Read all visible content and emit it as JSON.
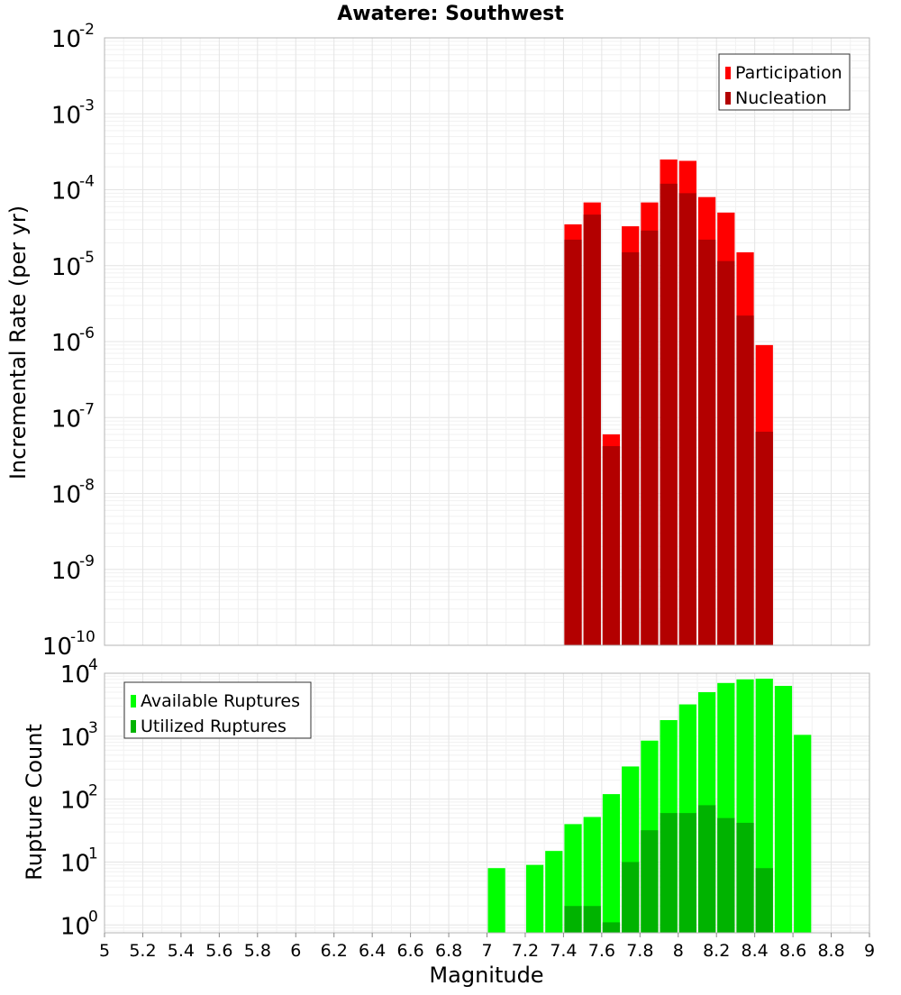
{
  "chart_data": [
    {
      "type": "bar",
      "title": "Awatere: Southwest",
      "xlabel": "",
      "ylabel": "Incremental Rate (per yr)",
      "yscale": "log",
      "ylim": [
        1e-10,
        0.01
      ],
      "xlim": [
        5,
        9
      ],
      "grid": true,
      "legend_position": "top-right",
      "x": [
        7.45,
        7.55,
        7.65,
        7.75,
        7.85,
        7.95,
        8.05,
        8.15,
        8.25,
        8.35,
        8.45
      ],
      "series": [
        {
          "name": "Participation",
          "color": "#ff0000",
          "values": [
            3.5e-05,
            6.8e-05,
            6e-08,
            3.3e-05,
            6.8e-05,
            0.00025,
            0.00024,
            8e-05,
            5e-05,
            1.5e-05,
            9e-07
          ]
        },
        {
          "name": "Nucleation",
          "color": "#b30000",
          "values": [
            2.2e-05,
            4.7e-05,
            4.2e-08,
            1.5e-05,
            2.9e-05,
            0.00012,
            9e-05,
            2.2e-05,
            1.15e-05,
            2.2e-06,
            6.5e-08
          ]
        }
      ],
      "yticks": [
        {
          "base": "10",
          "exp": "-2"
        },
        {
          "base": "10",
          "exp": "-3"
        },
        {
          "base": "10",
          "exp": "-4"
        },
        {
          "base": "10",
          "exp": "-5"
        },
        {
          "base": "10",
          "exp": "-6"
        },
        {
          "base": "10",
          "exp": "-7"
        },
        {
          "base": "10",
          "exp": "-8"
        },
        {
          "base": "10",
          "exp": "-9"
        },
        {
          "base": "10",
          "exp": "-10"
        }
      ]
    },
    {
      "type": "bar",
      "title": "",
      "xlabel": "Magnitude",
      "ylabel": "Rupture Count",
      "yscale": "log",
      "ylim": [
        0.75,
        10000
      ],
      "xlim": [
        5,
        9
      ],
      "grid": true,
      "legend_position": "top-left",
      "x": [
        7.05,
        7.25,
        7.35,
        7.45,
        7.55,
        7.65,
        7.75,
        7.85,
        7.95,
        8.05,
        8.15,
        8.25,
        8.35,
        8.45,
        8.55,
        8.65
      ],
      "series": [
        {
          "name": "Available Ruptures",
          "color": "#00ff00",
          "values": [
            8,
            9,
            15,
            40,
            52,
            120,
            330,
            850,
            1800,
            3200,
            5000,
            7000,
            8000,
            8200,
            6300,
            1050
          ]
        },
        {
          "name": "Utilized Ruptures",
          "color": "#00b300",
          "values": [
            0,
            0,
            0,
            2,
            2,
            1.1,
            10,
            32,
            60,
            60,
            80,
            50,
            42,
            8,
            0,
            0
          ]
        }
      ],
      "yticks": [
        {
          "base": "10",
          "exp": "4"
        },
        {
          "base": "10",
          "exp": "3"
        },
        {
          "base": "10",
          "exp": "2"
        },
        {
          "base": "10",
          "exp": "1"
        },
        {
          "base": "10",
          "exp": "0"
        }
      ],
      "xticks": [
        "5",
        "5.2",
        "5.4",
        "5.6",
        "5.8",
        "6",
        "6.2",
        "6.4",
        "6.6",
        "6.8",
        "7",
        "7.2",
        "7.4",
        "7.6",
        "7.8",
        "8",
        "8.2",
        "8.4",
        "8.6",
        "8.8",
        "9"
      ]
    }
  ]
}
